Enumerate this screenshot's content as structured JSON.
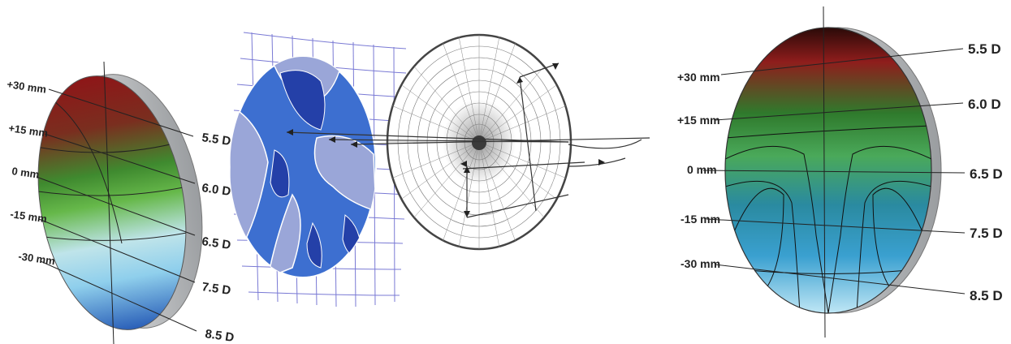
{
  "left_lens": {
    "mm_labels": [
      "+30 mm",
      "+15 mm",
      "0 mm",
      "-15 mm",
      "-30 mm"
    ],
    "power_labels": [
      "5.5 D",
      "6.0 D",
      "6.5 D",
      "7.5 D",
      "8.5 D"
    ]
  },
  "right_lens": {
    "mm_labels": [
      "+30 mm",
      "+15 mm",
      "0 mm",
      "-15 mm",
      "-30 mm"
    ],
    "power_labels": [
      "5.5 D",
      "6.0 D",
      "6.5 D",
      "7.5 D",
      "8.5 D"
    ]
  },
  "colors": {
    "top": "#9b1b1e",
    "mid_green": "#4aa53a",
    "light_blue": "#a8dbee",
    "deep_blue": "#2b63b6",
    "map_dark": "#2440a8",
    "map_mid": "#3d6fd0",
    "map_light": "#9aa6d8",
    "rim": "#b9bcbf"
  }
}
